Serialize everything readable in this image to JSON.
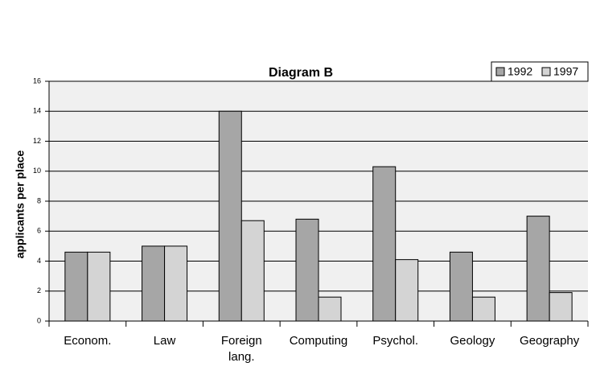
{
  "chart_data": {
    "type": "bar",
    "title": "Diagram B",
    "y_label": "applicants per place",
    "categories": [
      "Econom.",
      "Law",
      "Foreign lang.",
      "Computing",
      "Psychol.",
      "Geology",
      "Geography"
    ],
    "series": [
      {
        "name": "1992",
        "color": "#a6a6a6",
        "values": [
          4.6,
          5,
          14,
          6.8,
          10.3,
          4.6,
          7
        ]
      },
      {
        "name": "1997",
        "color": "#d4d4d4",
        "values": [
          4.6,
          5,
          6.7,
          1.6,
          4.1,
          1.6,
          1.9
        ]
      }
    ],
    "ylim": [
      0,
      16
    ],
    "yticks": [
      0,
      2,
      4,
      6,
      8,
      10,
      12,
      14,
      16
    ],
    "grid": true,
    "legend": "top-right"
  }
}
